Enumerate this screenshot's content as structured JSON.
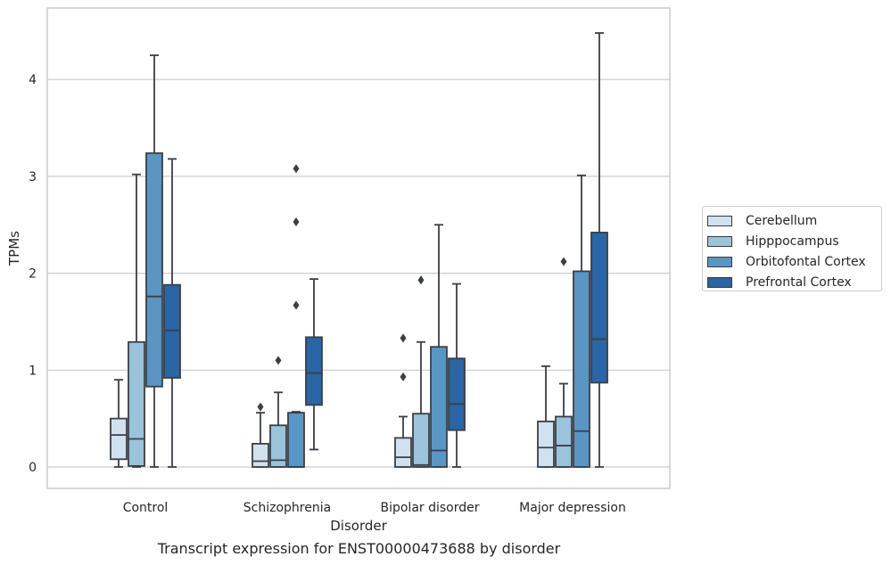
{
  "caption": "Transcript expression for ENST00000473688 by disorder",
  "chart_data": {
    "type": "boxplot",
    "xlabel": "Disorder",
    "ylabel": "TPMs",
    "ylim": [
      -0.22,
      4.7
    ],
    "yticks": [
      0,
      1,
      2,
      3,
      4
    ],
    "grid": "horizontal",
    "legend_placement": "right, outside plot",
    "categories": [
      "Control",
      "Schizophrenia",
      "Bipolar disorder",
      "Major depression"
    ],
    "series": [
      {
        "name": "Cerebellum",
        "color": "#d1e1f0",
        "boxes": [
          {
            "whisker_low": 0.0,
            "q1": 0.08,
            "median": 0.33,
            "q3": 0.5,
            "whisker_high": 0.9,
            "outliers": []
          },
          {
            "whisker_low": 0.0,
            "q1": 0.0,
            "median": 0.06,
            "q3": 0.24,
            "whisker_high": 0.56,
            "outliers": [
              0.62
            ]
          },
          {
            "whisker_low": 0.0,
            "q1": 0.0,
            "median": 0.1,
            "q3": 0.3,
            "whisker_high": 0.52,
            "outliers": [
              0.93,
              1.33
            ]
          },
          {
            "whisker_low": 0.0,
            "q1": 0.0,
            "median": 0.2,
            "q3": 0.47,
            "whisker_high": 1.04,
            "outliers": []
          }
        ]
      },
      {
        "name": "Hipppocampus",
        "color": "#9ac3dc",
        "boxes": [
          {
            "whisker_low": 0.0,
            "q1": 0.01,
            "median": 0.29,
            "q3": 1.29,
            "whisker_high": 3.02,
            "outliers": []
          },
          {
            "whisker_low": 0.0,
            "q1": 0.0,
            "median": 0.07,
            "q3": 0.43,
            "whisker_high": 0.77,
            "outliers": [
              1.1
            ]
          },
          {
            "whisker_low": 0.0,
            "q1": 0.0,
            "median": 0.02,
            "q3": 0.55,
            "whisker_high": 1.29,
            "outliers": [
              1.93
            ]
          },
          {
            "whisker_low": 0.0,
            "q1": 0.0,
            "median": 0.22,
            "q3": 0.52,
            "whisker_high": 0.86,
            "outliers": [
              2.12
            ]
          }
        ]
      },
      {
        "name": "Orbitofontal Cortex",
        "color": "#5a95c3",
        "boxes": [
          {
            "whisker_low": 0.0,
            "q1": 0.83,
            "median": 1.76,
            "q3": 3.24,
            "whisker_high": 4.25,
            "outliers": []
          },
          {
            "whisker_low": 0.0,
            "q1": 0.0,
            "median": 0.0,
            "q3": 0.56,
            "whisker_high": 0.57,
            "outliers": [
              1.67,
              2.53,
              3.08
            ]
          },
          {
            "whisker_low": 0.0,
            "q1": 0.0,
            "median": 0.17,
            "q3": 1.24,
            "whisker_high": 2.5,
            "outliers": []
          },
          {
            "whisker_low": 0.0,
            "q1": 0.0,
            "median": 0.37,
            "q3": 2.02,
            "whisker_high": 3.01,
            "outliers": []
          }
        ]
      },
      {
        "name": "Prefrontal Cortex",
        "color": "#2a65a5",
        "boxes": [
          {
            "whisker_low": 0.0,
            "q1": 0.92,
            "median": 1.41,
            "q3": 1.88,
            "whisker_high": 3.18,
            "outliers": []
          },
          {
            "whisker_low": 0.18,
            "q1": 0.64,
            "median": 0.97,
            "q3": 1.34,
            "whisker_high": 1.94,
            "outliers": []
          },
          {
            "whisker_low": 0.0,
            "q1": 0.38,
            "median": 0.65,
            "q3": 1.12,
            "whisker_high": 1.89,
            "outliers": []
          },
          {
            "whisker_low": 0.0,
            "q1": 0.87,
            "median": 1.32,
            "q3": 2.42,
            "whisker_high": 4.48,
            "outliers": []
          }
        ]
      }
    ]
  }
}
